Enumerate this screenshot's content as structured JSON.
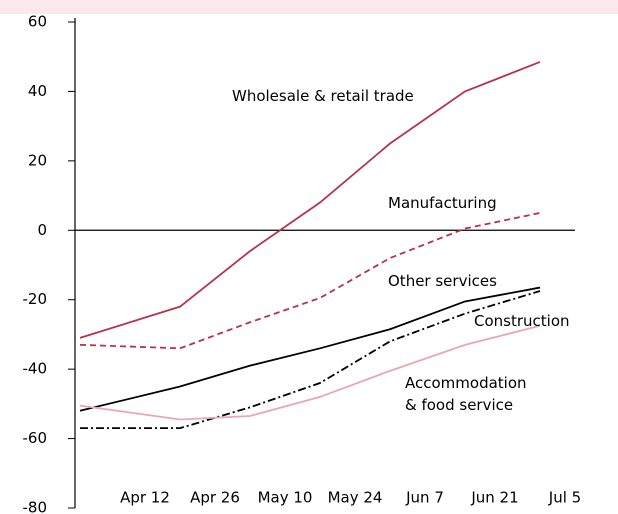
{
  "chart_data": {
    "type": "line",
    "x": [
      90,
      110,
      124,
      138,
      152,
      167,
      182
    ],
    "xlim": [
      89,
      189
    ],
    "xticks": [
      {
        "value": 103,
        "label": "Apr 12"
      },
      {
        "value": 117,
        "label": "Apr 26"
      },
      {
        "value": 131,
        "label": "May 10"
      },
      {
        "value": 145,
        "label": "May 24"
      },
      {
        "value": 159,
        "label": "Jun 7"
      },
      {
        "value": 173,
        "label": "Jun 21"
      },
      {
        "value": 187,
        "label": "Jul 5"
      }
    ],
    "ylim": [
      -80,
      60
    ],
    "yticks": [
      60,
      40,
      20,
      0,
      -20,
      -40,
      -60,
      -80
    ],
    "zero_line": true,
    "series": [
      {
        "name": "Wholesale & retail trade",
        "color": "#b5334c",
        "dash": "solid",
        "values": [
          -31,
          -22,
          -6,
          8,
          25,
          40,
          48.5
        ]
      },
      {
        "name": "Manufacturing",
        "color": "#b5334c",
        "dash": "dashed",
        "values": [
          -33,
          -34,
          -26.5,
          -19.5,
          -8,
          0.5,
          5
        ]
      },
      {
        "name": "Other services",
        "color": "#000000",
        "dash": "solid",
        "values": [
          -52,
          -45,
          -39,
          -34,
          -28.5,
          -20.5,
          -16.5
        ]
      },
      {
        "name": "Construction",
        "color": "#000000",
        "dash": "dashdot",
        "values": [
          -57,
          -57,
          -51,
          -44,
          -32,
          -24,
          -17.5
        ]
      },
      {
        "name": "Accommodation & food service",
        "color": "#e8a7b3",
        "dash": "solid",
        "values": [
          -50.5,
          -54.5,
          -53.5,
          -48,
          -40.5,
          -33,
          -27.5
        ]
      }
    ]
  }
}
